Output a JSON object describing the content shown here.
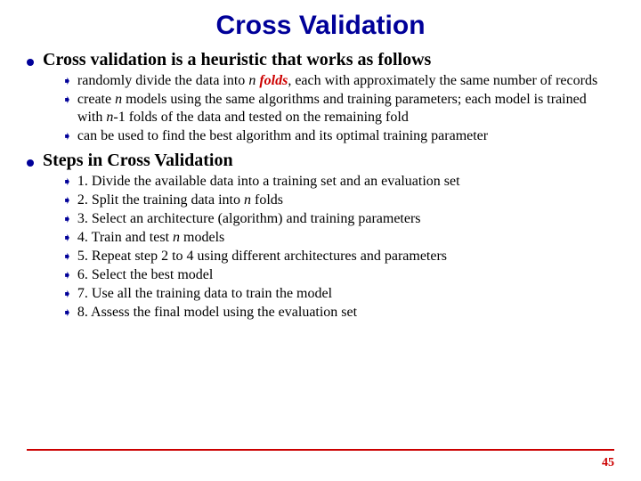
{
  "colors": {
    "title": "#000099",
    "bullet": "#000099",
    "arrow": "#000099",
    "folds": "#cc0000",
    "rule": "#cc0000",
    "pagenum": "#cc0000",
    "body": "#000000"
  },
  "fonts": {
    "title_size": 30,
    "heading_size": 20,
    "sub_size": 16,
    "pagenum_size": 14,
    "arrow_size": 13
  },
  "title": "Cross Validation",
  "sections": [
    {
      "heading": "Cross validation is a heuristic that works as follows",
      "items": [
        {
          "type": "folds",
          "pre": "randomly divide the data into ",
          "n": "n",
          "mid": "  ",
          "folds": "folds",
          "post": ", each with approximately the same number of records"
        },
        {
          "type": "rich",
          "segments": [
            {
              "t": "create ",
              "s": ""
            },
            {
              "t": "n",
              "s": "italic"
            },
            {
              "t": " models using the same algorithms and training parameters; each model is trained with ",
              "s": ""
            },
            {
              "t": "n",
              "s": "italic"
            },
            {
              "t": "-1 folds of the data and tested on the remaining fold",
              "s": ""
            }
          ]
        },
        {
          "type": "plain",
          "text": "can be used to find the best algorithm and its optimal training parameter"
        }
      ]
    },
    {
      "heading": "Steps in Cross Validation",
      "items": [
        {
          "type": "plain",
          "text": "1. Divide the available data into a training set and an evaluation set"
        },
        {
          "type": "rich",
          "segments": [
            {
              "t": "2. Split the training data into ",
              "s": ""
            },
            {
              "t": "n",
              "s": "italic"
            },
            {
              "t": " folds",
              "s": ""
            }
          ]
        },
        {
          "type": "plain",
          "text": "3. Select an architecture (algorithm) and training parameters"
        },
        {
          "type": "rich",
          "segments": [
            {
              "t": "4. Train and test ",
              "s": ""
            },
            {
              "t": "n",
              "s": "italic"
            },
            {
              "t": " models",
              "s": ""
            }
          ]
        },
        {
          "type": "plain",
          "text": "5. Repeat step 2 to 4 using different architectures and parameters"
        },
        {
          "type": "plain",
          "text": "6. Select the best model"
        },
        {
          "type": "plain",
          "text": "7. Use all the training data to train the model"
        },
        {
          "type": "plain",
          "text": "8. Assess the final model using the evaluation set"
        }
      ]
    }
  ],
  "page_number": "45",
  "arrow_glyph": "➧"
}
